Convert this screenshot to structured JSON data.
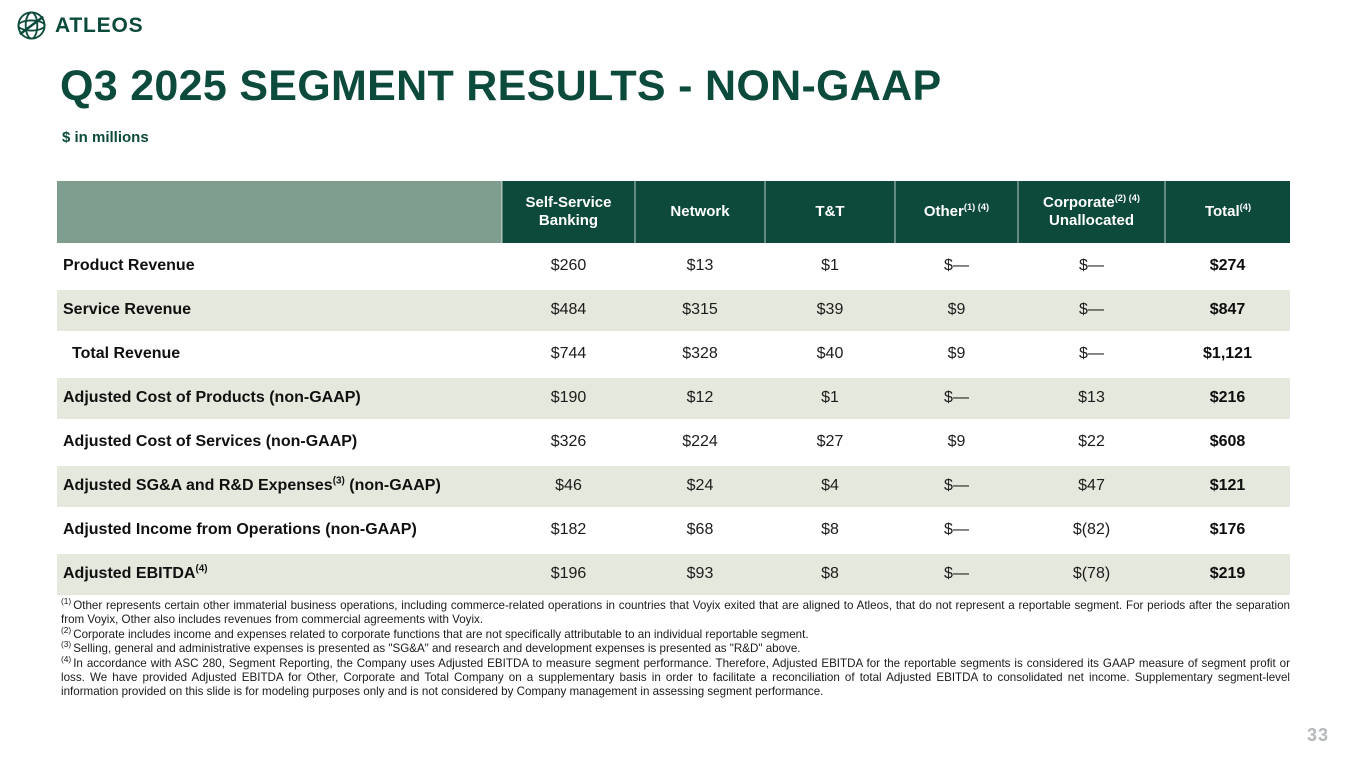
{
  "brand": {
    "name": "ATLEOS"
  },
  "slide": {
    "title": "Q3 2025 SEGMENT RESULTS - NON-GAAP",
    "subtitle": "$ in millions",
    "page_number": "33"
  },
  "colors": {
    "brand_green": "#0c4a3c",
    "header_green": "#0e4a3c",
    "corner_sage": "#7f9e90",
    "row_alt_green": "#e5e8dd",
    "page_number_gray": "#b5b8ba"
  },
  "table": {
    "columns": [
      {
        "id": "self-service-banking",
        "label": "Self-Service Banking",
        "sup": "",
        "label2": ""
      },
      {
        "id": "network",
        "label": "Network",
        "sup": "",
        "label2": ""
      },
      {
        "id": "tnt",
        "label": "T&T",
        "sup": "",
        "label2": ""
      },
      {
        "id": "other",
        "label": "Other",
        "sup": "(1) (4)",
        "label2": ""
      },
      {
        "id": "corporate-unallocated",
        "label": "Corporate",
        "sup": "(2) (4)",
        "label2": "Unallocated"
      },
      {
        "id": "total",
        "label": "Total",
        "sup": "(4)",
        "label2": ""
      }
    ],
    "rows": [
      {
        "label": "Product Revenue",
        "label_sup": "",
        "label_after": "",
        "indent": false,
        "values": [
          "$260",
          "$13",
          "$1",
          "$—",
          "$—",
          "$274"
        ]
      },
      {
        "label": "Service Revenue",
        "label_sup": "",
        "label_after": "",
        "indent": false,
        "values": [
          "$484",
          "$315",
          "$39",
          "$9",
          "$—",
          "$847"
        ]
      },
      {
        "label": "Total Revenue",
        "label_sup": "",
        "label_after": "",
        "indent": true,
        "values": [
          "$744",
          "$328",
          "$40",
          "$9",
          "$—",
          "$1,121"
        ]
      },
      {
        "label": "Adjusted Cost of Products (non-GAAP)",
        "label_sup": "",
        "label_after": "",
        "indent": false,
        "values": [
          "$190",
          "$12",
          "$1",
          "$—",
          "$13",
          "$216"
        ]
      },
      {
        "label": "Adjusted Cost of Services (non-GAAP)",
        "label_sup": "",
        "label_after": "",
        "indent": false,
        "values": [
          "$326",
          "$224",
          "$27",
          "$9",
          "$22",
          "$608"
        ]
      },
      {
        "label": "Adjusted SG&A and R&D Expenses",
        "label_sup": "(3)",
        "label_after": " (non-GAAP)",
        "indent": false,
        "values": [
          "$46",
          "$24",
          "$4",
          "$—",
          "$47",
          "$121"
        ]
      },
      {
        "label": "Adjusted Income from Operations (non-GAAP)",
        "label_sup": "",
        "label_after": "",
        "indent": false,
        "values": [
          "$182",
          "$68",
          "$8",
          "$—",
          "$(82)",
          "$176"
        ]
      },
      {
        "label": "Adjusted EBITDA",
        "label_sup": "(4)",
        "label_after": "",
        "indent": false,
        "values": [
          "$196",
          "$93",
          "$8",
          "$—",
          "$(78)",
          "$219"
        ]
      }
    ]
  },
  "footnotes": [
    {
      "marker": "(1)",
      "text": "Other represents certain other immaterial business operations, including commerce-related operations in countries that Voyix exited that are aligned to Atleos, that do not represent a reportable segment. For periods after the separation from Voyix, Other also includes revenues from commercial agreements with Voyix."
    },
    {
      "marker": "(2)",
      "text": "Corporate includes income and expenses related to corporate functions that are not specifically attributable to an individual reportable segment."
    },
    {
      "marker": "(3)",
      "text": "Selling, general and administrative expenses is presented as \"SG&A\" and research and development expenses is presented as \"R&D\" above."
    },
    {
      "marker": "(4)",
      "text": "In accordance with ASC 280, Segment Reporting, the Company uses Adjusted EBITDA to measure segment performance. Therefore, Adjusted EBITDA for the reportable segments is considered its GAAP measure of segment profit or loss. We have provided Adjusted EBITDA for Other, Corporate and Total Company on a supplementary basis in order to facilitate a reconciliation of total Adjusted EBITDA to consolidated net income. Supplementary segment-level information provided on this slide is for modeling purposes only and is not considered by Company management in assessing segment performance."
    }
  ]
}
